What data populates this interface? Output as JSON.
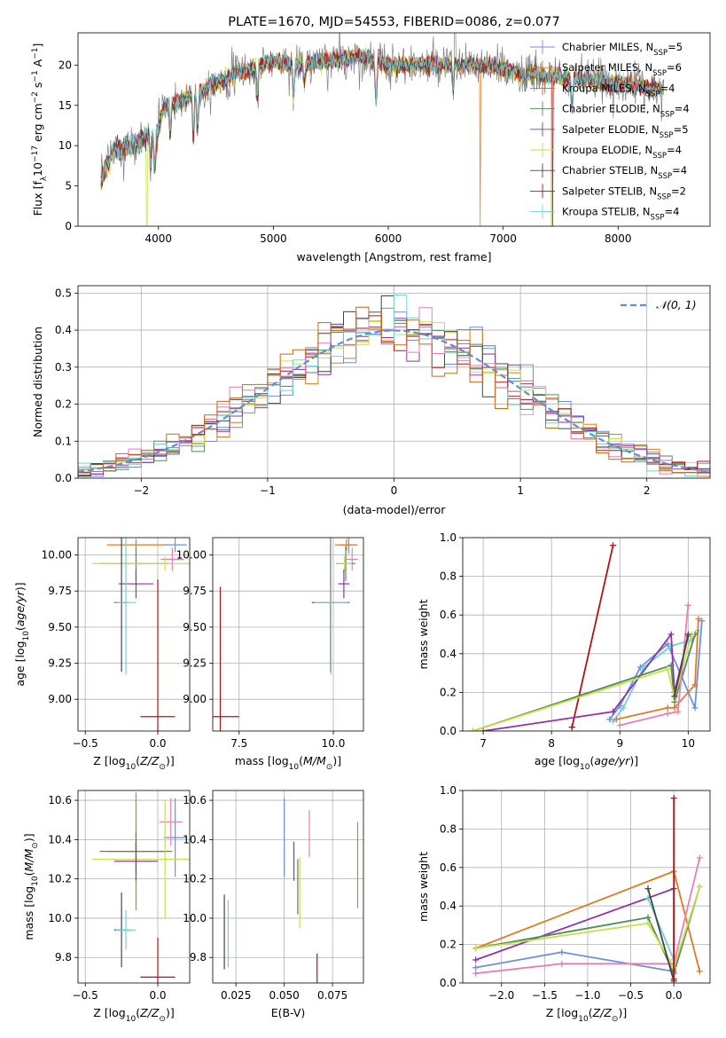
{
  "figure_title": "PLATE=1670, MJD=54553, FIBERID=0086, z=0.077",
  "colors": {
    "chabrier_miles": "#6a8fdc",
    "salpeter_miles": "#e07b22",
    "kroupa_miles": "#c46a1a",
    "chabrier_elodie": "#4f8a5a",
    "salpeter_elodie": "#8e34a8",
    "kroupa_elodie": "#c7e04a",
    "chabrier_stelib": "#444444",
    "salpeter_stelib": "#b01515",
    "kroupa_stelib": "#72d0d8",
    "pink": "#e67fb8",
    "data": "#808080",
    "normal": "#5b8fd6"
  },
  "chart_data": [
    {
      "id": "spectrum",
      "type": "line",
      "title": "PLATE=1670, MJD=54553, FIBERID=0086, z=0.077",
      "xlabel": "wavelength [Angstrom, rest frame]",
      "ylabel": "Flux [f_λ 10^-17 erg cm^-2 s^-1 A^-1]",
      "xlim": [
        3300,
        8800
      ],
      "ylim": [
        0,
        24
      ],
      "xticks": [
        4000,
        5000,
        6000,
        7000,
        8000
      ],
      "yticks": [
        0,
        5,
        10,
        15,
        20
      ],
      "legend_position": "right",
      "legend": [
        {
          "label": "Chabrier MILES, N",
          "sub": "SSP",
          "suffix": "=5",
          "color": "#6a8fdc"
        },
        {
          "label": "Salpeter MILES, N",
          "sub": "SSP",
          "suffix": "=6",
          "color": "#e07b22"
        },
        {
          "label": "Kroupa MILES, N",
          "sub": "SSP",
          "suffix": "=4",
          "color": "#c46a1a"
        },
        {
          "label": "Chabrier ELODIE, N",
          "sub": "SSP",
          "suffix": "=4",
          "color": "#4f8a5a"
        },
        {
          "label": "Salpeter ELODIE, N",
          "sub": "SSP",
          "suffix": "=5",
          "color": "#8e34a8"
        },
        {
          "label": "Kroupa ELODIE, N",
          "sub": "SSP",
          "suffix": "=4",
          "color": "#c7e04a"
        },
        {
          "label": "Chabrier STELIB, N",
          "sub": "SSP",
          "suffix": "=4",
          "color": "#444444"
        },
        {
          "label": "Salpeter STELIB, N",
          "sub": "SSP",
          "suffix": "=2",
          "color": "#b01515"
        },
        {
          "label": "Kroupa STELIB, N",
          "sub": "SSP",
          "suffix": "=4",
          "color": "#72d0d8"
        }
      ],
      "continuum": [
        [
          3500,
          6
        ],
        [
          3600,
          10
        ],
        [
          3700,
          10.5
        ],
        [
          3800,
          11
        ],
        [
          3900,
          12
        ],
        [
          4000,
          12.5
        ],
        [
          4050,
          15
        ],
        [
          4200,
          15.5
        ],
        [
          4400,
          17
        ],
        [
          4600,
          18.5
        ],
        [
          4800,
          19.5
        ],
        [
          5000,
          20.5
        ],
        [
          5200,
          20
        ],
        [
          5500,
          20.5
        ],
        [
          5800,
          21
        ],
        [
          6000,
          20
        ],
        [
          6200,
          20
        ],
        [
          6500,
          20
        ],
        [
          6800,
          20
        ],
        [
          7000,
          19.5
        ],
        [
          7200,
          19
        ],
        [
          7500,
          18.5
        ],
        [
          7800,
          18
        ],
        [
          8100,
          17.5
        ],
        [
          8400,
          17
        ]
      ]
    },
    {
      "id": "residuals",
      "type": "line",
      "xlabel": "(data-model)/error",
      "ylabel": "Normed distribution",
      "xlim": [
        -2.5,
        2.5
      ],
      "ylim": [
        0,
        0.52
      ],
      "xticks": [
        -2,
        -1,
        0,
        1,
        2
      ],
      "yticks": [
        0.0,
        0.1,
        0.2,
        0.3,
        0.4,
        0.5
      ],
      "legend_position": "top-right",
      "legend": [
        {
          "label": "𝒩(0, 1)",
          "color": "#5b8fd6",
          "style": "dashed"
        }
      ]
    },
    {
      "id": "age_vs_Z",
      "type": "scatter",
      "xlabel": "Z [log10(Z/Z⊙)]",
      "ylabel": "age [log10(age/yr)]",
      "xlim": [
        -0.55,
        0.22
      ],
      "ylim": [
        8.78,
        10.12
      ],
      "xticks": [
        -0.5,
        0.0
      ],
      "yticks": [
        9.0,
        9.25,
        9.5,
        9.75,
        10.0
      ],
      "points": [
        {
          "x": 0.12,
          "y": 10.07,
          "xerr": 0.08,
          "yerr": 0.05,
          "color": "#6a8fdc"
        },
        {
          "x": -0.15,
          "y": 10.07,
          "xerr": 0.2,
          "yerr": 0.04,
          "color": "#e07b22"
        },
        {
          "x": 0.1,
          "y": 9.97,
          "xerr": 0.08,
          "yerr": 0.08,
          "color": "#e67fb8"
        },
        {
          "x": -0.15,
          "y": 9.94,
          "xerr": 0.25,
          "yerr": 0.11,
          "color": "#4f8a5a"
        },
        {
          "x": 0.05,
          "y": 9.94,
          "xerr": 0.5,
          "yerr": 0.05,
          "color": "#c7e04a"
        },
        {
          "x": -0.15,
          "y": 9.8,
          "xerr": 0.12,
          "yerr": 0.1,
          "color": "#8e34a8"
        },
        {
          "x": -0.25,
          "y": 9.67,
          "xerr": 0.05,
          "yerr": 0.48,
          "color": "#444444"
        },
        {
          "x": -0.22,
          "y": 9.67,
          "xerr": 0.07,
          "yerr": 0.5,
          "color": "#72d0d8"
        },
        {
          "x": 0.0,
          "y": 8.88,
          "xerr": 0.12,
          "yerr": 0.95,
          "color": "#b01515"
        }
      ]
    },
    {
      "id": "age_vs_mass",
      "type": "scatter",
      "xlabel": "mass [log10(M/M⊙)]",
      "ylabel": "",
      "xlim": [
        6.8,
        10.8
      ],
      "ylim": [
        8.78,
        10.12
      ],
      "xticks": [
        7.5,
        10.0
      ],
      "yticks": [
        9.0,
        9.25,
        9.5,
        9.75,
        10.0
      ],
      "points": [
        {
          "x": 10.41,
          "y": 10.07,
          "xerr": 0.2,
          "yerr": 0.06,
          "color": "#6a8fdc"
        },
        {
          "x": 10.35,
          "y": 10.07,
          "xerr": 0.3,
          "yerr": 0.04,
          "color": "#e07b22"
        },
        {
          "x": 10.5,
          "y": 9.97,
          "xerr": 0.15,
          "yerr": 0.08,
          "color": "#e67fb8"
        },
        {
          "x": 10.33,
          "y": 9.94,
          "xerr": 0.25,
          "yerr": 0.12,
          "color": "#4f8a5a"
        },
        {
          "x": 10.3,
          "y": 9.94,
          "xerr": 0.2,
          "yerr": 0.05,
          "color": "#c7e04a"
        },
        {
          "x": 10.28,
          "y": 9.8,
          "xerr": 0.15,
          "yerr": 0.1,
          "color": "#8e34a8"
        },
        {
          "x": 9.93,
          "y": 9.67,
          "xerr": 0.5,
          "yerr": 0.48,
          "color": "#444444"
        },
        {
          "x": 9.94,
          "y": 9.67,
          "xerr": 0.45,
          "yerr": 0.5,
          "color": "#72d0d8"
        },
        {
          "x": 7.0,
          "y": 8.88,
          "xerr": 0.5,
          "yerr": 0.9,
          "color": "#b01515"
        }
      ]
    },
    {
      "id": "massweight_vs_age",
      "type": "line",
      "xlabel": "age [log10(age/yr)]",
      "ylabel": "mass weight",
      "xlim": [
        6.7,
        10.32
      ],
      "ylim": [
        0.0,
        1.0
      ],
      "xticks": [
        7,
        8,
        9,
        10
      ],
      "yticks": [
        0.0,
        0.2,
        0.4,
        0.6,
        0.8,
        1.0
      ],
      "series": [
        {
          "color": "#b01515",
          "points": [
            [
              8.3,
              0.02
            ],
            [
              8.9,
              0.96
            ],
            [
              8.3,
              0.02
            ]
          ]
        },
        {
          "color": "#6a8fdc",
          "points": [
            [
              8.85,
              0.06
            ],
            [
              9.0,
              0.13
            ],
            [
              9.3,
              0.33
            ],
            [
              9.7,
              0.45
            ],
            [
              10.1,
              0.12
            ],
            [
              10.2,
              0.57
            ]
          ]
        },
        {
          "color": "#72d0d8",
          "points": [
            [
              8.9,
              0.05
            ],
            [
              9.05,
              0.12
            ],
            [
              9.35,
              0.33
            ],
            [
              9.75,
              0.44
            ],
            [
              10.05,
              0.47
            ],
            [
              10.15,
              0.52
            ]
          ]
        },
        {
          "color": "#e07b22",
          "points": [
            [
              8.95,
              0.06
            ],
            [
              9.7,
              0.12
            ],
            [
              9.8,
              0.12
            ],
            [
              10.1,
              0.24
            ],
            [
              10.15,
              0.58
            ]
          ]
        },
        {
          "color": "#8e34a8",
          "points": [
            [
              7.0,
              0.0
            ],
            [
              8.9,
              0.1
            ],
            [
              9.75,
              0.5
            ],
            [
              9.8,
              0.2
            ],
            [
              10.0,
              0.49
            ]
          ]
        },
        {
          "color": "#4f8a5a",
          "points": [
            [
              6.85,
              0.0
            ],
            [
              9.75,
              0.34
            ],
            [
              9.8,
              0.15
            ],
            [
              10.1,
              0.5
            ]
          ]
        },
        {
          "color": "#c7e04a",
          "points": [
            [
              6.85,
              0.0
            ],
            [
              9.7,
              0.32
            ],
            [
              9.8,
              0.17
            ],
            [
              10.05,
              0.5
            ]
          ]
        },
        {
          "color": "#e67fb8",
          "points": [
            [
              9.0,
              0.03
            ],
            [
              9.7,
              0.09
            ],
            [
              9.85,
              0.1
            ],
            [
              10.0,
              0.65
            ]
          ]
        },
        {
          "color": "#444444",
          "points": [
            [
              9.8,
              0.18
            ],
            [
              10.0,
              0.5
            ]
          ]
        }
      ]
    },
    {
      "id": "mass_vs_Z",
      "type": "scatter",
      "xlabel": "Z [log10(Z/Z⊙)]",
      "ylabel": "mass [log10(M/M⊙)]",
      "xlim": [
        -0.55,
        0.22
      ],
      "ylim": [
        9.67,
        10.65
      ],
      "xticks": [
        -0.5,
        0.0
      ],
      "yticks": [
        9.8,
        10.0,
        10.2,
        10.4,
        10.6
      ],
      "points": [
        {
          "x": 0.12,
          "y": 10.41,
          "xerr": 0.08,
          "yerr": 0.2,
          "color": "#6a8fdc"
        },
        {
          "x": 0.09,
          "y": 10.49,
          "xerr": 0.08,
          "yerr": 0.12,
          "color": "#e67fb8"
        },
        {
          "x": -0.15,
          "y": 10.34,
          "xerr": 0.2,
          "yerr": 0.3,
          "color": "#e07b22"
        },
        {
          "x": -0.15,
          "y": 10.34,
          "xerr": 0.25,
          "yerr": 0.1,
          "color": "#4f8a5a"
        },
        {
          "x": 0.05,
          "y": 10.3,
          "xerr": 0.5,
          "yerr": 0.3,
          "color": "#c7e04a"
        },
        {
          "x": -0.15,
          "y": 10.29,
          "xerr": 0.15,
          "yerr": 0.1,
          "color": "#8e34a8"
        },
        {
          "x": -0.25,
          "y": 9.94,
          "xerr": 0.05,
          "yerr": 0.19,
          "color": "#444444"
        },
        {
          "x": -0.22,
          "y": 9.94,
          "xerr": 0.07,
          "yerr": 0.1,
          "color": "#72d0d8"
        },
        {
          "x": 0.0,
          "y": 9.7,
          "xerr": 0.12,
          "yerr": 0.2,
          "color": "#b01515"
        }
      ]
    },
    {
      "id": "mass_vs_ebv",
      "type": "scatter",
      "xlabel": "E(B-V)",
      "ylabel": "",
      "xlim": [
        0.013,
        0.091
      ],
      "ylim": [
        9.67,
        10.65
      ],
      "xticks": [
        0.025,
        0.05,
        0.075
      ],
      "yticks": [
        9.8,
        10.0,
        10.2,
        10.4,
        10.6
      ],
      "points": [
        {
          "x": 0.05,
          "y": 10.41,
          "yerr": 0.2,
          "color": "#6a8fdc"
        },
        {
          "x": 0.088,
          "y": 10.27,
          "yerr": 0.22,
          "color": "#e07b22"
        },
        {
          "x": 0.063,
          "y": 10.43,
          "yerr": 0.12,
          "color": "#e67fb8"
        },
        {
          "x": 0.057,
          "y": 10.16,
          "yerr": 0.14,
          "color": "#4f8a5a"
        },
        {
          "x": 0.055,
          "y": 10.29,
          "yerr": 0.1,
          "color": "#8e34a8"
        },
        {
          "x": 0.058,
          "y": 10.13,
          "yerr": 0.18,
          "color": "#c7e04a"
        },
        {
          "x": 0.019,
          "y": 9.93,
          "yerr": 0.19,
          "color": "#444444"
        },
        {
          "x": 0.021,
          "y": 9.92,
          "yerr": 0.17,
          "color": "#72d0d8"
        },
        {
          "x": 0.067,
          "y": 9.74,
          "yerr": 0.08,
          "color": "#b01515"
        }
      ]
    },
    {
      "id": "massweight_vs_Z",
      "type": "line",
      "xlabel": "Z [log10(Z/Z⊙)]",
      "ylabel": "mass weight",
      "xlim": [
        -2.45,
        0.42
      ],
      "ylim": [
        0.0,
        1.0
      ],
      "xticks": [
        -2.0,
        -1.5,
        -1.0,
        -0.5,
        0.0
      ],
      "yticks": [
        0.0,
        0.2,
        0.4,
        0.6,
        0.8,
        1.0
      ],
      "series": [
        {
          "color": "#6a8fdc",
          "points": [
            [
              -2.3,
              0.08
            ],
            [
              -1.3,
              0.16
            ],
            [
              0.0,
              0.06
            ]
          ]
        },
        {
          "color": "#e07b22",
          "points": [
            [
              -2.3,
              0.18
            ],
            [
              0.0,
              0.58
            ],
            [
              0.3,
              0.06
            ]
          ]
        },
        {
          "color": "#8e34a8",
          "points": [
            [
              -2.3,
              0.12
            ],
            [
              0.0,
              0.49
            ],
            [
              0.0,
              0.1
            ]
          ]
        },
        {
          "color": "#4f8a5a",
          "points": [
            [
              -2.3,
              0.18
            ],
            [
              -0.3,
              0.34
            ],
            [
              0.0,
              0.05
            ],
            [
              0.3,
              0.5
            ]
          ]
        },
        {
          "color": "#c7e04a",
          "points": [
            [
              -2.3,
              0.18
            ],
            [
              -0.3,
              0.31
            ],
            [
              0.0,
              0.08
            ],
            [
              0.3,
              0.5
            ]
          ]
        },
        {
          "color": "#e67fb8",
          "points": [
            [
              -2.3,
              0.05
            ],
            [
              -1.3,
              0.1
            ],
            [
              0.0,
              0.1
            ],
            [
              0.3,
              0.65
            ]
          ]
        },
        {
          "color": "#72d0d8",
          "points": [
            [
              -0.3,
              0.44
            ],
            [
              0.0,
              0.12
            ]
          ]
        },
        {
          "color": "#444444",
          "points": [
            [
              -0.3,
              0.49
            ],
            [
              0.0,
              0.01
            ]
          ]
        },
        {
          "color": "#b01515",
          "points": [
            [
              0.0,
              0.96
            ],
            [
              0.0,
              0.02
            ]
          ]
        }
      ]
    }
  ]
}
